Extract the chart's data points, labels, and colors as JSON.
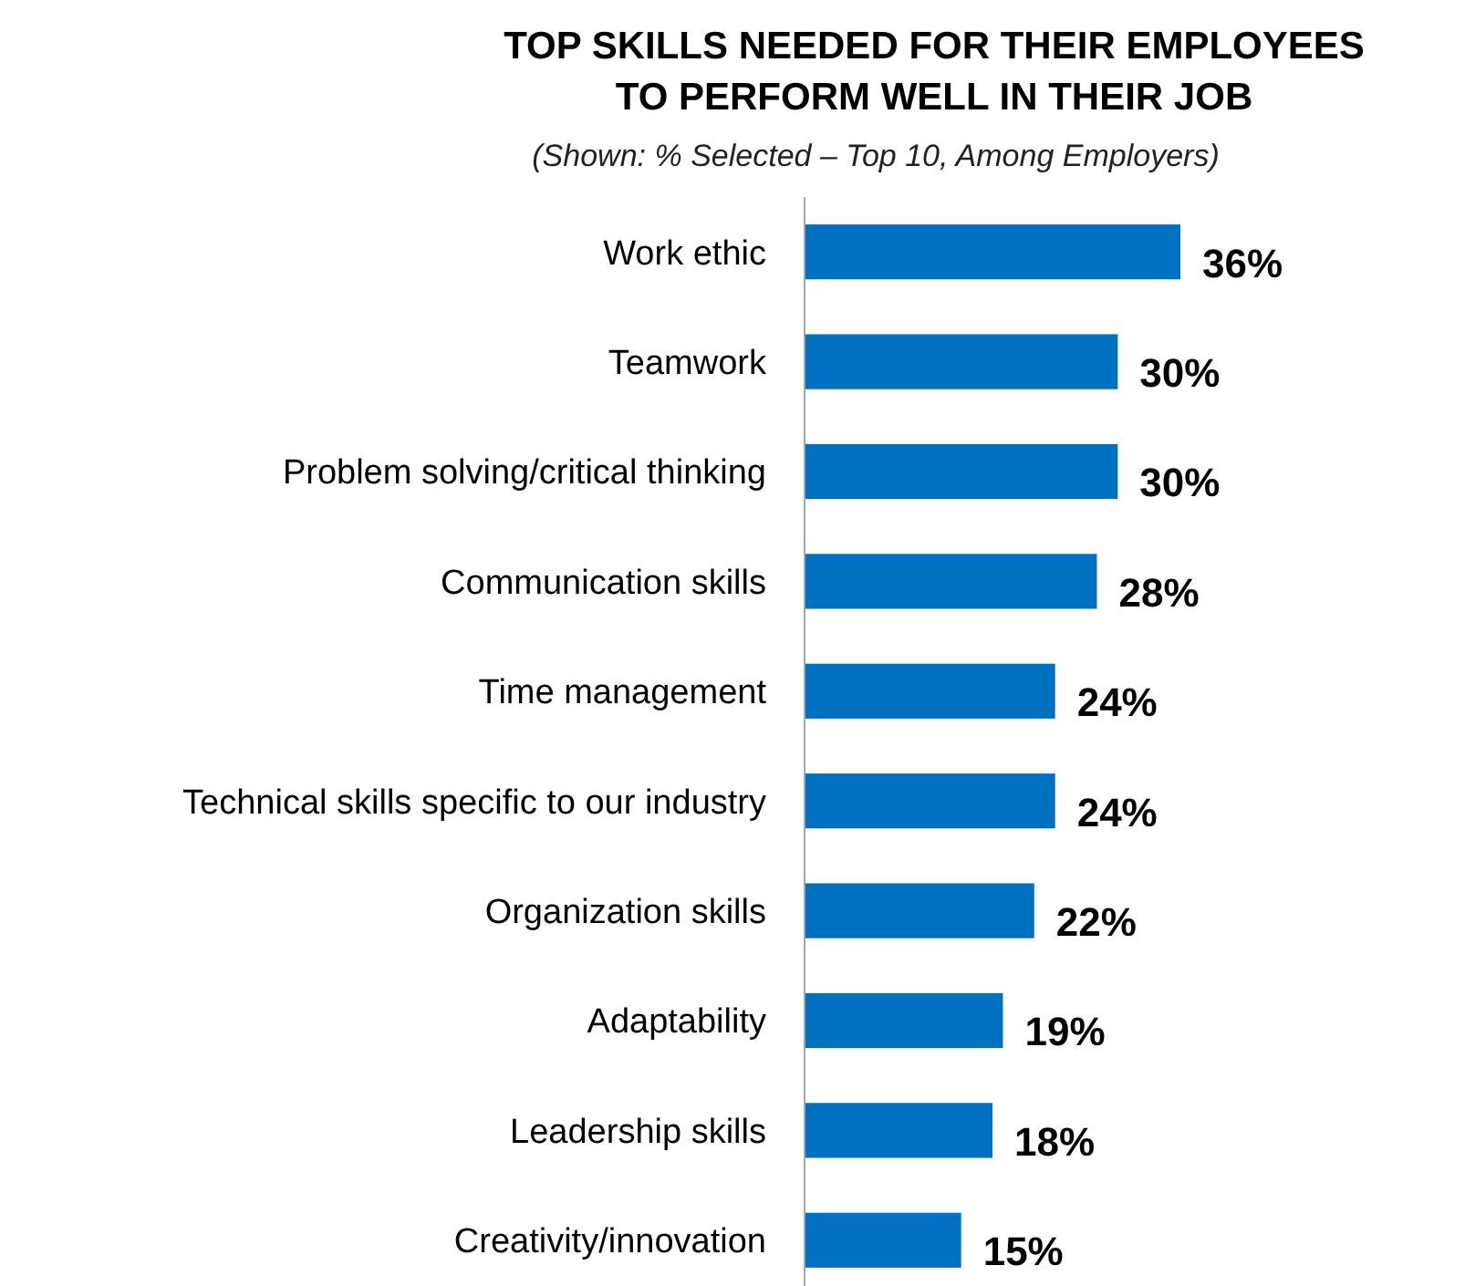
{
  "chart_data": {
    "type": "bar",
    "orientation": "horizontal",
    "title": "TOP SKILLS NEEDED FOR THEIR EMPLOYEES\nTO PERFORM WELL IN THEIR JOB",
    "subtitle": "(Shown: % Selected – Top 10, Among Employers)",
    "categories": [
      "Work ethic",
      "Teamwork",
      "Problem solving/critical thinking",
      "Communication skills",
      "Time management",
      "Technical skills specific to our industry",
      "Organization skills",
      "Adaptability",
      "Leadership skills",
      "Creativity/innovation"
    ],
    "values": [
      36,
      30,
      30,
      28,
      24,
      24,
      22,
      19,
      18,
      15
    ],
    "value_labels": [
      "36%",
      "30%",
      "30%",
      "28%",
      "24%",
      "24%",
      "22%",
      "19%",
      "18%",
      "15%"
    ],
    "color": "#0070c0"
  }
}
